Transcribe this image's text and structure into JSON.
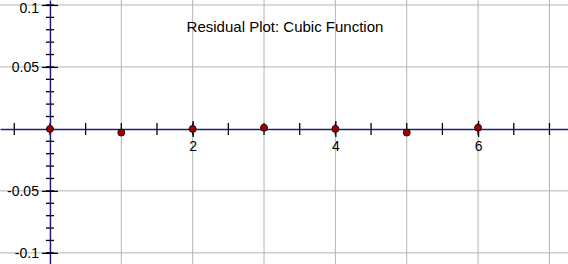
{
  "chart_data": {
    "type": "scatter",
    "title": "Residual Plot: Cubic Function",
    "x": [
      0,
      1,
      2,
      3,
      4,
      5,
      6
    ],
    "values": [
      0,
      -0.003,
      0,
      0.001,
      0,
      -0.003,
      0.001
    ],
    "color": "#a00000",
    "marker": "circle",
    "xlim": [
      -0.7,
      7.26
    ],
    "xticks": [
      2,
      4,
      6
    ],
    "ylim": [
      -0.109,
      0.104
    ],
    "yticks": [
      -0.1,
      -0.05,
      0.05,
      0.1
    ],
    "grid": true
  }
}
